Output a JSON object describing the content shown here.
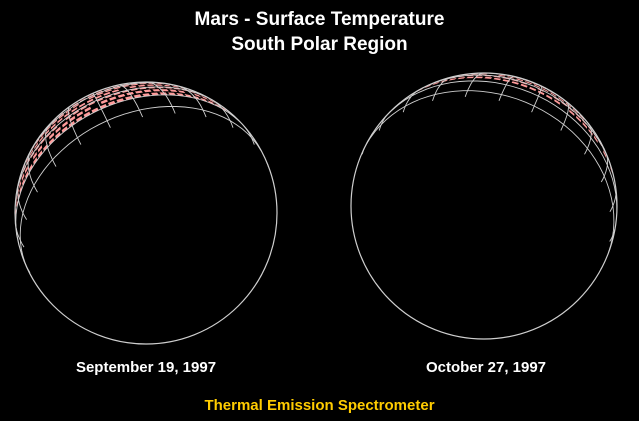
{
  "title": "Mars - Surface Temperature",
  "subtitle": "South Polar Region",
  "panels": [
    {
      "date": "September 19, 1997"
    },
    {
      "date": "October 27, 1997"
    }
  ],
  "instrument": "Thermal Emission Spectrometer",
  "colors": {
    "background": "#000000",
    "grid": "#cfcfcf",
    "instrument_text": "#ffcc00",
    "text": "#ffffff",
    "temperature_scale": [
      "#2a12c8",
      "#4a3bea",
      "#1e8cff",
      "#1ec8ff",
      "#18d8b0",
      "#22d84a",
      "#8ad820",
      "#f0e020",
      "#ff9a1a",
      "#ff3a1a",
      "#ff9a9a"
    ]
  }
}
